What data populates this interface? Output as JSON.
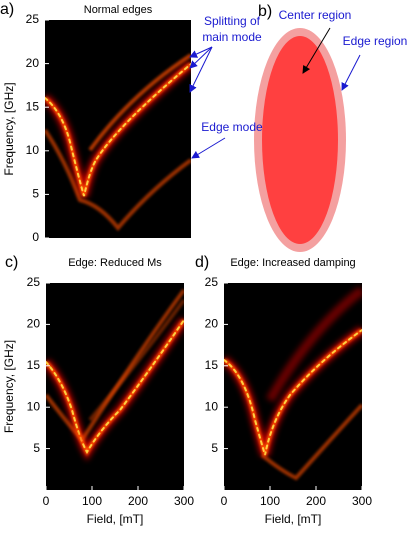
{
  "chart_data": [
    {
      "type": "heatmap",
      "panel_label": "a)",
      "title": "Normal edges",
      "ylabel": "Frequency, [GHz]",
      "xlim": [
        0,
        300
      ],
      "ylim": [
        0,
        25
      ],
      "yticks": [
        0,
        5,
        10,
        15,
        20,
        25
      ],
      "annotations": [
        "Splitting of",
        "main mode",
        "Edge mode"
      ]
    },
    {
      "type": "heatmap",
      "panel_label": "c)",
      "title": "Edge: Reduced Ms",
      "ylabel": "Frequency, [GHz]",
      "xlabel": "Field, [mT]",
      "xlim": [
        0,
        300
      ],
      "ylim": [
        0,
        25
      ],
      "xticks": [
        0,
        100,
        200,
        300
      ],
      "yticks": [
        5,
        10,
        15,
        20,
        25
      ]
    },
    {
      "type": "heatmap",
      "panel_label": "d)",
      "title": "Edge: Increased damping",
      "xlabel": "Field, [mT]",
      "xlim": [
        0,
        300
      ],
      "ylim": [
        0,
        25
      ],
      "xticks": [
        0,
        100,
        200,
        300
      ],
      "yticks": [
        5,
        10,
        15,
        20,
        25
      ]
    }
  ],
  "diagram": {
    "panel_label": "b)",
    "labels": [
      "Center region",
      "Edge region"
    ]
  }
}
